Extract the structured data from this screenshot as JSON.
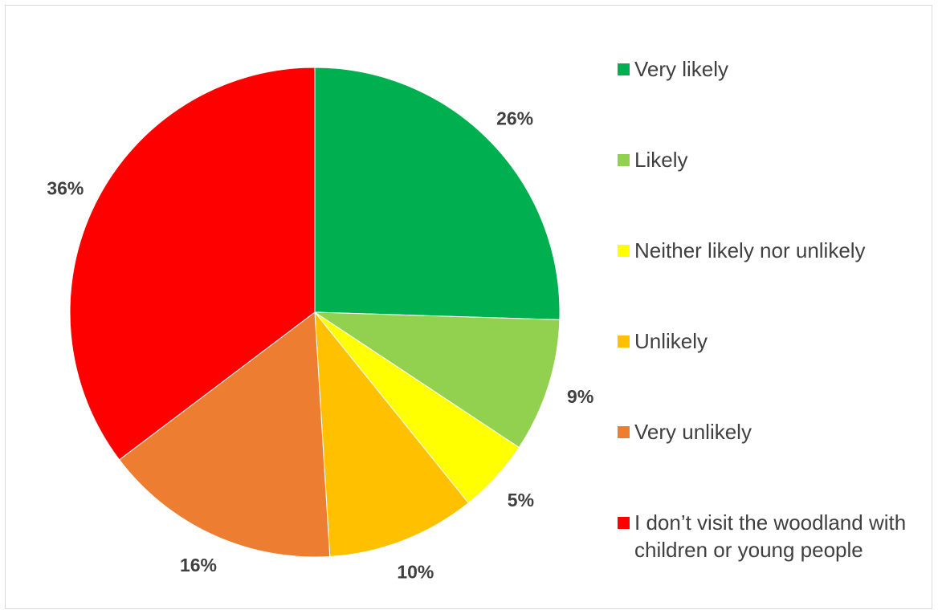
{
  "chart_data": {
    "type": "pie",
    "slices": [
      {
        "label": "Very likely",
        "value": 26,
        "display": "26%",
        "color": "#00b050"
      },
      {
        "label": "Likely",
        "value": 9,
        "display": "9%",
        "color": "#92d050"
      },
      {
        "label": "Neither likely nor unlikely",
        "value": 5,
        "display": "5%",
        "color": "#ffff00"
      },
      {
        "label": "Unlikely",
        "value": 10,
        "display": "10%",
        "color": "#ffc000"
      },
      {
        "label": "Very unlikely",
        "value": 16,
        "display": "16%",
        "color": "#ed7d31"
      },
      {
        "label": "I don’t visit the woodland with children or young people",
        "value": 36,
        "display": "36%",
        "color": "#ff0000"
      }
    ],
    "start_angle": "12 o'clock",
    "direction": "clockwise",
    "legend_position": "right"
  }
}
